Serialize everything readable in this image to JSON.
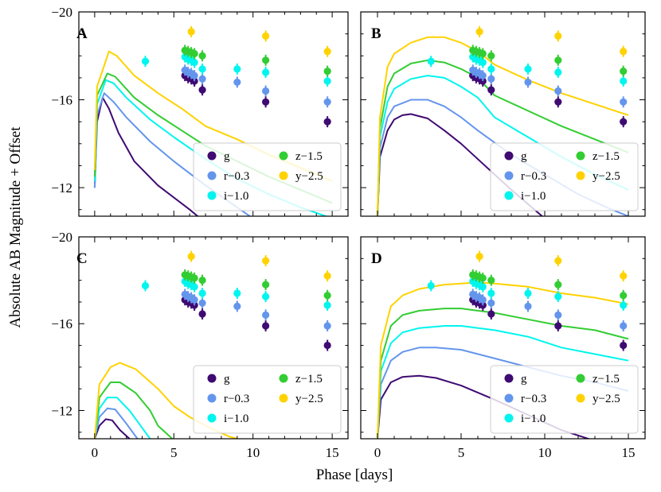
{
  "chart_data": {
    "type": "line",
    "xlabel": "Phase [days]",
    "ylabel": "Absolute AB Magnitude + Offset",
    "xlim": [
      -1,
      16
    ],
    "ylim": [
      -10.7,
      -20
    ],
    "xticks_left": [
      "0",
      "5",
      "10",
      "15"
    ],
    "xticks_right": [
      "0",
      "5",
      "10",
      "15"
    ],
    "yticks": [
      "−20",
      "−16",
      "−12"
    ],
    "bands": [
      {
        "key": "g",
        "label": "g",
        "color": "#3f0a72"
      },
      {
        "key": "r",
        "label": "r−0.3",
        "color": "#6495ed"
      },
      {
        "key": "i",
        "label": "i−1.0",
        "color": "#00f5ee"
      },
      {
        "key": "z",
        "label": "z−1.5",
        "color": "#32cd32"
      },
      {
        "key": "y",
        "label": "y−2.5",
        "color": "#ffd200"
      }
    ],
    "observations": {
      "g": [
        [
          5.7,
          -17.1
        ],
        [
          5.9,
          -17.0
        ],
        [
          6.1,
          -16.95
        ],
        [
          6.3,
          -16.85
        ],
        [
          6.8,
          -16.45
        ],
        [
          10.8,
          -15.9
        ],
        [
          14.7,
          -15.0
        ]
      ],
      "r": [
        [
          5.7,
          -17.35
        ],
        [
          5.9,
          -17.25
        ],
        [
          6.1,
          -17.2
        ],
        [
          6.3,
          -17.1
        ],
        [
          6.8,
          -16.95
        ],
        [
          9.0,
          -16.8
        ],
        [
          10.8,
          -16.4
        ],
        [
          14.7,
          -15.9
        ]
      ],
      "i": [
        [
          3.2,
          -17.75
        ],
        [
          5.7,
          -17.95
        ],
        [
          5.9,
          -17.85
        ],
        [
          6.1,
          -17.8
        ],
        [
          6.3,
          -17.7
        ],
        [
          6.8,
          -17.4
        ],
        [
          9.0,
          -17.4
        ],
        [
          10.8,
          -17.25
        ],
        [
          14.7,
          -16.85
        ]
      ],
      "z": [
        [
          5.7,
          -18.25
        ],
        [
          5.9,
          -18.2
        ],
        [
          6.1,
          -18.15
        ],
        [
          6.3,
          -18.1
        ],
        [
          6.8,
          -18.0
        ],
        [
          10.8,
          -17.8
        ],
        [
          14.7,
          -17.3
        ]
      ],
      "y": [
        [
          6.1,
          -19.1
        ],
        [
          10.8,
          -18.9
        ],
        [
          14.7,
          -18.2
        ]
      ]
    },
    "panels": [
      {
        "label": "A",
        "models": {
          "g": [
            [
              0,
              -12
            ],
            [
              0.15,
              -15
            ],
            [
              0.5,
              -16.1
            ],
            [
              0.9,
              -15.6
            ],
            [
              1.5,
              -14.5
            ],
            [
              2.5,
              -13.2
            ],
            [
              4,
              -12.1
            ],
            [
              6,
              -11.0
            ],
            [
              7,
              -10.4
            ]
          ],
          "r": [
            [
              0,
              -12
            ],
            [
              0.15,
              -15.3
            ],
            [
              0.6,
              -16.3
            ],
            [
              1.2,
              -15.9
            ],
            [
              2,
              -15.2
            ],
            [
              3.5,
              -14.1
            ],
            [
              5,
              -13.2
            ],
            [
              7,
              -12.1
            ],
            [
              9,
              -11.1
            ],
            [
              10,
              -10.6
            ]
          ],
          "i": [
            [
              0,
              -12.3
            ],
            [
              0.15,
              -15.8
            ],
            [
              0.7,
              -16.9
            ],
            [
              1.2,
              -16.75
            ],
            [
              2,
              -16.1
            ],
            [
              3.5,
              -15.1
            ],
            [
              5,
              -14.3
            ],
            [
              7,
              -13.3
            ],
            [
              9,
              -12.4
            ],
            [
              11,
              -11.7
            ],
            [
              13,
              -11.1
            ],
            [
              15,
              -10.6
            ]
          ],
          "z": [
            [
              0,
              -12.5
            ],
            [
              0.15,
              -16.2
            ],
            [
              0.8,
              -17.2
            ],
            [
              1.3,
              -17.05
            ],
            [
              2.5,
              -16.1
            ],
            [
              4,
              -15.3
            ],
            [
              5.5,
              -14.6
            ],
            [
              7,
              -13.9
            ],
            [
              9,
              -13.2
            ],
            [
              11,
              -12.5
            ],
            [
              13,
              -11.9
            ],
            [
              15,
              -11.3
            ]
          ],
          "y": [
            [
              0,
              -12.8
            ],
            [
              0.15,
              -16.6
            ],
            [
              0.9,
              -18.2
            ],
            [
              1.4,
              -18.0
            ],
            [
              2.5,
              -17.1
            ],
            [
              4,
              -16.3
            ],
            [
              5.5,
              -15.6
            ],
            [
              7,
              -14.8
            ],
            [
              9,
              -14.2
            ],
            [
              11,
              -13.5
            ],
            [
              13,
              -12.9
            ],
            [
              15,
              -12.3
            ]
          ]
        }
      },
      {
        "label": "B",
        "models": {
          "g": [
            [
              0,
              -10.7
            ],
            [
              0.15,
              -13.4
            ],
            [
              0.6,
              -14.6
            ],
            [
              1,
              -15.1
            ],
            [
              1.5,
              -15.3
            ],
            [
              2,
              -15.35
            ],
            [
              3,
              -15.15
            ],
            [
              4,
              -14.6
            ],
            [
              5,
              -14.0
            ],
            [
              6,
              -13.3
            ],
            [
              8,
              -11.9
            ],
            [
              10,
              -10.6
            ]
          ],
          "r": [
            [
              0,
              -10.7
            ],
            [
              0.15,
              -13.8
            ],
            [
              0.6,
              -15.2
            ],
            [
              1,
              -15.7
            ],
            [
              2,
              -16.0
            ],
            [
              3,
              -16.0
            ],
            [
              4,
              -15.7
            ],
            [
              5,
              -15.2
            ],
            [
              6,
              -14.6
            ],
            [
              8,
              -13.5
            ],
            [
              10,
              -12.6
            ],
            [
              12,
              -11.7
            ],
            [
              14,
              -11.0
            ],
            [
              15,
              -10.7
            ]
          ],
          "i": [
            [
              0,
              -10.7
            ],
            [
              0.15,
              -14.3
            ],
            [
              0.6,
              -15.9
            ],
            [
              1,
              -16.5
            ],
            [
              2,
              -16.95
            ],
            [
              3,
              -17.1
            ],
            [
              4,
              -17.0
            ],
            [
              5,
              -16.6
            ],
            [
              6,
              -16.1
            ],
            [
              7,
              -15.2
            ],
            [
              9,
              -14.3
            ],
            [
              11,
              -13.4
            ],
            [
              13,
              -12.6
            ],
            [
              15,
              -11.9
            ]
          ],
          "z": [
            [
              0,
              -10.7
            ],
            [
              0.15,
              -14.7
            ],
            [
              0.6,
              -16.6
            ],
            [
              1,
              -17.2
            ],
            [
              2,
              -17.65
            ],
            [
              3,
              -17.8
            ],
            [
              4,
              -17.7
            ],
            [
              5,
              -17.4
            ],
            [
              6,
              -17.0
            ],
            [
              7,
              -16.2
            ],
            [
              9,
              -15.5
            ],
            [
              11,
              -14.8
            ],
            [
              13,
              -14.2
            ],
            [
              15,
              -13.6
            ]
          ],
          "y": [
            [
              0,
              -10.7
            ],
            [
              0.15,
              -15.2
            ],
            [
              0.6,
              -17.5
            ],
            [
              1,
              -18.1
            ],
            [
              2,
              -18.6
            ],
            [
              3,
              -18.85
            ],
            [
              4,
              -18.85
            ],
            [
              5,
              -18.6
            ],
            [
              6,
              -18.2
            ],
            [
              7,
              -17.6
            ],
            [
              9,
              -16.9
            ],
            [
              11,
              -16.3
            ],
            [
              13,
              -15.8
            ],
            [
              15,
              -15.3
            ]
          ]
        }
      },
      {
        "label": "C",
        "models": {
          "g": [
            [
              0,
              -10.7
            ],
            [
              0.3,
              -11.3
            ],
            [
              0.7,
              -11.6
            ],
            [
              1.1,
              -11.55
            ],
            [
              1.6,
              -11.1
            ],
            [
              2.2,
              -10.7
            ]
          ],
          "r": [
            [
              0,
              -10.7
            ],
            [
              0.3,
              -11.7
            ],
            [
              0.8,
              -12.1
            ],
            [
              1.3,
              -12.05
            ],
            [
              2,
              -11.4
            ],
            [
              2.7,
              -10.7
            ]
          ],
          "i": [
            [
              0,
              -10.7
            ],
            [
              0.3,
              -12.1
            ],
            [
              0.8,
              -12.6
            ],
            [
              1.4,
              -12.6
            ],
            [
              2.2,
              -12.0
            ],
            [
              3,
              -11.2
            ],
            [
              3.5,
              -10.7
            ]
          ],
          "z": [
            [
              0,
              -10.7
            ],
            [
              0.3,
              -12.6
            ],
            [
              1,
              -13.3
            ],
            [
              1.6,
              -13.3
            ],
            [
              2.6,
              -12.8
            ],
            [
              3.5,
              -12.0
            ],
            [
              4,
              -11.3
            ],
            [
              4.9,
              -10.7
            ]
          ],
          "y": [
            [
              0,
              -10.7
            ],
            [
              0.3,
              -13.2
            ],
            [
              1,
              -14.0
            ],
            [
              1.6,
              -14.2
            ],
            [
              2.6,
              -13.9
            ],
            [
              4,
              -13.0
            ],
            [
              5,
              -12.2
            ],
            [
              6,
              -11.7
            ],
            [
              7,
              -11.3
            ],
            [
              8.5,
              -10.8
            ],
            [
              9,
              -10.7
            ]
          ]
        }
      },
      {
        "label": "D",
        "models": {
          "g": [
            [
              0,
              -10.7
            ],
            [
              0.2,
              -12.5
            ],
            [
              0.8,
              -13.3
            ],
            [
              1.5,
              -13.55
            ],
            [
              2.5,
              -13.6
            ],
            [
              3.5,
              -13.5
            ],
            [
              5,
              -13.15
            ],
            [
              7,
              -12.5
            ],
            [
              9,
              -11.8
            ],
            [
              11,
              -11.1
            ],
            [
              13,
              -10.6
            ],
            [
              15,
              -10.2
            ]
          ],
          "r": [
            [
              0,
              -10.7
            ],
            [
              0.2,
              -13.2
            ],
            [
              0.8,
              -14.3
            ],
            [
              1.5,
              -14.7
            ],
            [
              2.5,
              -14.9
            ],
            [
              3.5,
              -14.9
            ],
            [
              5,
              -14.8
            ],
            [
              7,
              -14.4
            ],
            [
              9,
              -14.0
            ],
            [
              11,
              -13.6
            ],
            [
              13,
              -13.3
            ],
            [
              15,
              -12.9
            ]
          ],
          "i": [
            [
              0,
              -10.7
            ],
            [
              0.2,
              -13.8
            ],
            [
              0.8,
              -15.1
            ],
            [
              1.5,
              -15.6
            ],
            [
              2.5,
              -15.8
            ],
            [
              4,
              -15.9
            ],
            [
              5,
              -15.9
            ],
            [
              7,
              -15.7
            ],
            [
              9,
              -15.4
            ],
            [
              11,
              -14.9
            ],
            [
              13,
              -14.6
            ],
            [
              15,
              -14.3
            ]
          ],
          "z": [
            [
              0,
              -10.7
            ],
            [
              0.2,
              -14.3
            ],
            [
              0.8,
              -15.9
            ],
            [
              1.5,
              -16.4
            ],
            [
              2.5,
              -16.6
            ],
            [
              4,
              -16.7
            ],
            [
              5,
              -16.7
            ],
            [
              7,
              -16.5
            ],
            [
              9,
              -16.2
            ],
            [
              11,
              -15.9
            ],
            [
              13,
              -15.7
            ],
            [
              15,
              -15.3
            ]
          ],
          "y": [
            [
              0,
              -10.7
            ],
            [
              0.2,
              -15.0
            ],
            [
              0.8,
              -16.8
            ],
            [
              1.5,
              -17.3
            ],
            [
              2.5,
              -17.6
            ],
            [
              4,
              -17.8
            ],
            [
              5,
              -17.85
            ],
            [
              6,
              -17.9
            ],
            [
              7,
              -17.85
            ],
            [
              9,
              -17.7
            ],
            [
              11,
              -17.4
            ],
            [
              13,
              -17.2
            ],
            [
              15,
              -16.9
            ]
          ]
        }
      }
    ]
  }
}
